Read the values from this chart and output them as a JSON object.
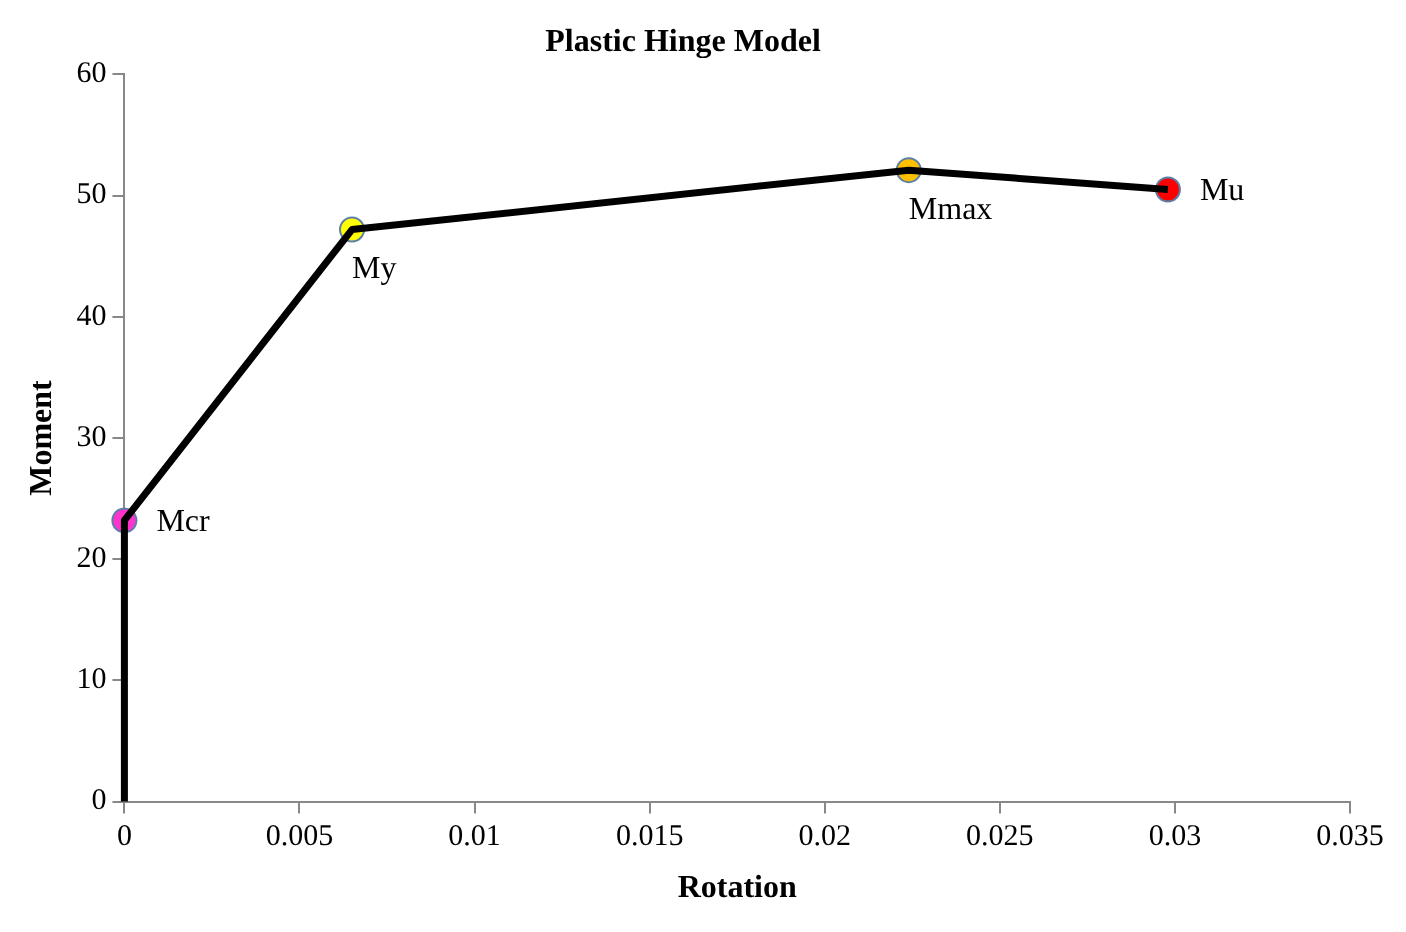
{
  "chart_data": {
    "type": "line",
    "title": "Plastic Hinge Model",
    "xlabel": "Rotation",
    "ylabel": "Moment",
    "xlim": [
      0,
      0.035
    ],
    "xticks": [
      0,
      0.005,
      0.01,
      0.015,
      0.02,
      0.025,
      0.03,
      0.035
    ],
    "ylim": [
      0,
      60
    ],
    "yticks": [
      0,
      10,
      20,
      30,
      40,
      50,
      60
    ],
    "grid": false,
    "legend": false,
    "series": [
      {
        "color": "#000000",
        "marker": "none",
        "x": [
          0,
          0,
          0.0065,
          0.0224,
          0.0298
        ],
        "values": [
          0,
          23.2,
          47.2,
          52.1,
          50.5
        ]
      },
      {
        "type": "scatter",
        "marker": "circle",
        "x": [
          0,
          0.0065,
          0.0224,
          0.0298
        ],
        "values": [
          23.2,
          47.2,
          52.1,
          50.5
        ],
        "colors": [
          "#ff33cc",
          "#ffff00",
          "#ffc000",
          "#ff0000"
        ]
      }
    ],
    "annotations": [
      {
        "text": "Mcr",
        "x": 0,
        "y": 23.2
      },
      {
        "text": "My",
        "x": 0.0065,
        "y": 47.2
      },
      {
        "text": "Mmax",
        "x": 0.0224,
        "y": 52.1
      },
      {
        "text": "Mu",
        "x": 0.0298,
        "y": 50.5
      }
    ]
  }
}
